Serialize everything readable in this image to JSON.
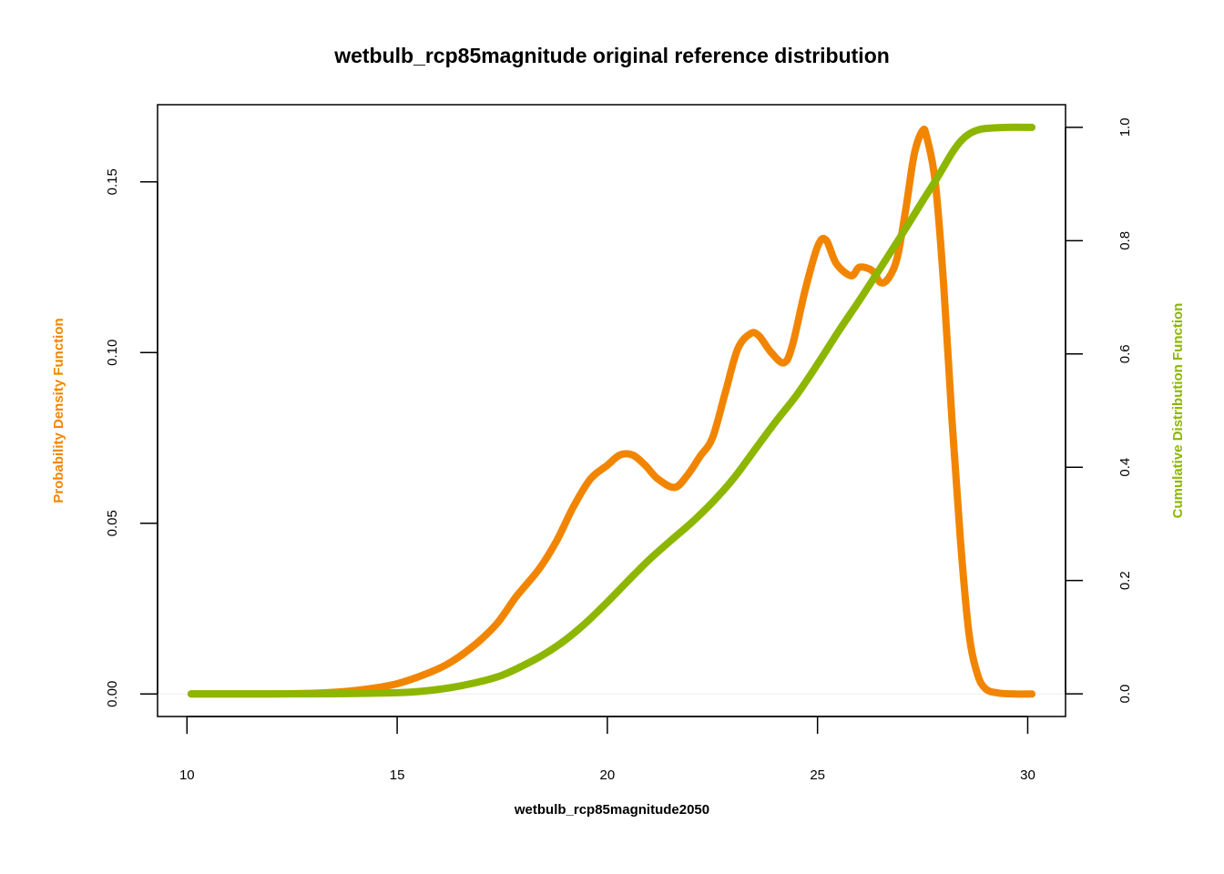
{
  "chart_data": {
    "type": "line",
    "title": "wetbulb_rcp85magnitude original reference distribution",
    "xlabel": "wetbulb_rcp85magnitude2050",
    "ylabel_left": "Probability Density Function",
    "ylabel_right": "Cumulative Distribution Function",
    "xlim": [
      9.3,
      30.9
    ],
    "ylim_left": [
      -0.0066,
      0.1726
    ],
    "ylim_right": [
      -0.04,
      1.04
    ],
    "x_ticks": [
      10,
      15,
      20,
      25,
      30
    ],
    "y_left_ticks": [
      0.0,
      0.05,
      0.1,
      0.15
    ],
    "y_left_tick_labels": [
      "0.00",
      "0.05",
      "0.10",
      "0.15"
    ],
    "y_right_ticks": [
      0.0,
      0.2,
      0.4,
      0.6,
      0.8,
      1.0
    ],
    "y_right_tick_labels": [
      "0.0",
      "0.2",
      "0.4",
      "0.6",
      "0.8",
      "1.0"
    ],
    "colors": {
      "pdf": "#F28500",
      "cdf": "#8DB600",
      "baseline": "#eeeeee"
    },
    "series": [
      {
        "name": "Probability Density Function",
        "axis": "left",
        "x": [
          10.1,
          11,
          12,
          13,
          13.5,
          14,
          14.5,
          15,
          15.5,
          16,
          16.3,
          16.6,
          17,
          17.4,
          17.8,
          18,
          18.4,
          18.8,
          19.2,
          19.6,
          20,
          20.3,
          20.6,
          20.9,
          21.2,
          21.6,
          21.9,
          22.2,
          22.5,
          22.8,
          23.1,
          23.4,
          23.6,
          23.9,
          24.2,
          24.4,
          24.7,
          25,
          25.2,
          25.45,
          25.8,
          26,
          26.3,
          26.5,
          26.7,
          26.9,
          27.1,
          27.3,
          27.5,
          27.6,
          27.8,
          28,
          28.2,
          28.4,
          28.6,
          28.8,
          29,
          29.3,
          29.7,
          30.1
        ],
        "y": [
          0,
          0,
          0,
          0.0002,
          0.0005,
          0.001,
          0.0018,
          0.003,
          0.005,
          0.0075,
          0.0095,
          0.012,
          0.016,
          0.021,
          0.028,
          0.031,
          0.037,
          0.045,
          0.055,
          0.063,
          0.067,
          0.07,
          0.07,
          0.067,
          0.063,
          0.0605,
          0.064,
          0.0695,
          0.075,
          0.088,
          0.101,
          0.1055,
          0.105,
          0.1,
          0.097,
          0.102,
          0.118,
          0.131,
          0.133,
          0.126,
          0.1225,
          0.125,
          0.124,
          0.1205,
          0.122,
          0.128,
          0.142,
          0.158,
          0.165,
          0.163,
          0.15,
          0.12,
          0.08,
          0.045,
          0.018,
          0.006,
          0.0015,
          0.0003,
          0,
          0
        ]
      },
      {
        "name": "Cumulative Distribution Function",
        "axis": "right",
        "x": [
          10.1,
          12,
          13,
          14,
          15,
          15.5,
          16,
          16.5,
          17,
          17.5,
          18,
          18.5,
          19,
          19.5,
          20,
          20.5,
          21,
          21.5,
          22,
          22.5,
          23,
          23.5,
          24,
          24.5,
          25,
          25.5,
          26,
          26.5,
          27,
          27.5,
          27.8,
          28,
          28.2,
          28.4,
          28.6,
          28.8,
          29,
          29.5,
          30.1
        ],
        "y": [
          0,
          0,
          0,
          0.0005,
          0.002,
          0.004,
          0.008,
          0.014,
          0.022,
          0.033,
          0.05,
          0.07,
          0.095,
          0.126,
          0.162,
          0.2,
          0.237,
          0.27,
          0.302,
          0.338,
          0.38,
          0.43,
          0.48,
          0.527,
          0.582,
          0.64,
          0.695,
          0.752,
          0.81,
          0.87,
          0.905,
          0.93,
          0.955,
          0.975,
          0.988,
          0.995,
          0.998,
          1,
          1
        ]
      }
    ],
    "grid": false,
    "legend": "none"
  }
}
